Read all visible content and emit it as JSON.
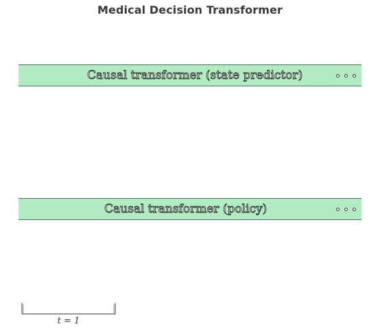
{
  "title": "Medical Decision Transformer",
  "bands": {
    "state_predictor": {
      "label": "Causal transformer (state predictor)"
    },
    "policy": {
      "label": "Causal transformer (policy)"
    }
  },
  "timestep": {
    "label": "t = 1"
  }
}
